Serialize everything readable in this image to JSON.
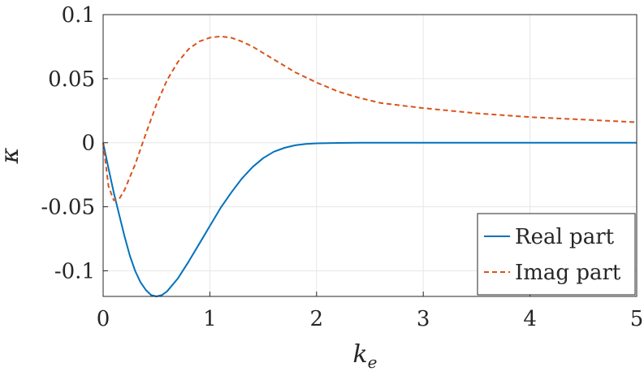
{
  "chart_data": {
    "type": "line",
    "xlabel": "k_e",
    "ylabel": "κ",
    "xlim": [
      0,
      5
    ],
    "ylim": [
      -0.12,
      0.1
    ],
    "grid": true,
    "x_ticks": [
      "0",
      "1",
      "2",
      "3",
      "4",
      "5"
    ],
    "y_ticks": [
      "-0.1",
      "-0.05",
      "0",
      "0.05",
      "0.1"
    ],
    "legend_position": "bottom-right",
    "series": [
      {
        "name": "Real part",
        "color": "#0072BD",
        "style": "solid",
        "x": [
          0,
          0.05,
          0.1,
          0.15,
          0.2,
          0.25,
          0.3,
          0.35,
          0.4,
          0.45,
          0.5,
          0.55,
          0.6,
          0.7,
          0.8,
          0.9,
          1.0,
          1.1,
          1.2,
          1.3,
          1.4,
          1.5,
          1.6,
          1.7,
          1.8,
          1.9,
          2.0,
          2.2,
          2.4,
          2.6,
          2.8,
          3.0,
          3.5,
          4.0,
          4.5,
          5.0
        ],
        "y": [
          0,
          -0.02,
          -0.039,
          -0.056,
          -0.073,
          -0.088,
          -0.1,
          -0.109,
          -0.115,
          -0.119,
          -0.12,
          -0.119,
          -0.116,
          -0.106,
          -0.093,
          -0.079,
          -0.065,
          -0.051,
          -0.039,
          -0.028,
          -0.019,
          -0.012,
          -0.007,
          -0.004,
          -0.002,
          -0.001,
          -0.0005,
          -0.0002,
          0,
          0,
          0,
          0,
          0,
          0,
          0,
          0
        ]
      },
      {
        "name": "Imag part",
        "color": "#D95319",
        "style": "dashed",
        "x": [
          0,
          0.05,
          0.1,
          0.15,
          0.2,
          0.3,
          0.4,
          0.5,
          0.6,
          0.7,
          0.8,
          0.9,
          1.0,
          1.1,
          1.2,
          1.3,
          1.4,
          1.5,
          1.6,
          1.7,
          1.8,
          2.0,
          2.2,
          2.4,
          2.6,
          2.8,
          3.0,
          3.5,
          4.0,
          4.5,
          5.0
        ],
        "y": [
          0,
          -0.034,
          -0.045,
          -0.044,
          -0.037,
          -0.017,
          0.007,
          0.03,
          0.049,
          0.063,
          0.073,
          0.079,
          0.082,
          0.083,
          0.082,
          0.079,
          0.075,
          0.07,
          0.065,
          0.06,
          0.055,
          0.047,
          0.04,
          0.035,
          0.031,
          0.029,
          0.027,
          0.023,
          0.02,
          0.018,
          0.016
        ]
      }
    ]
  }
}
